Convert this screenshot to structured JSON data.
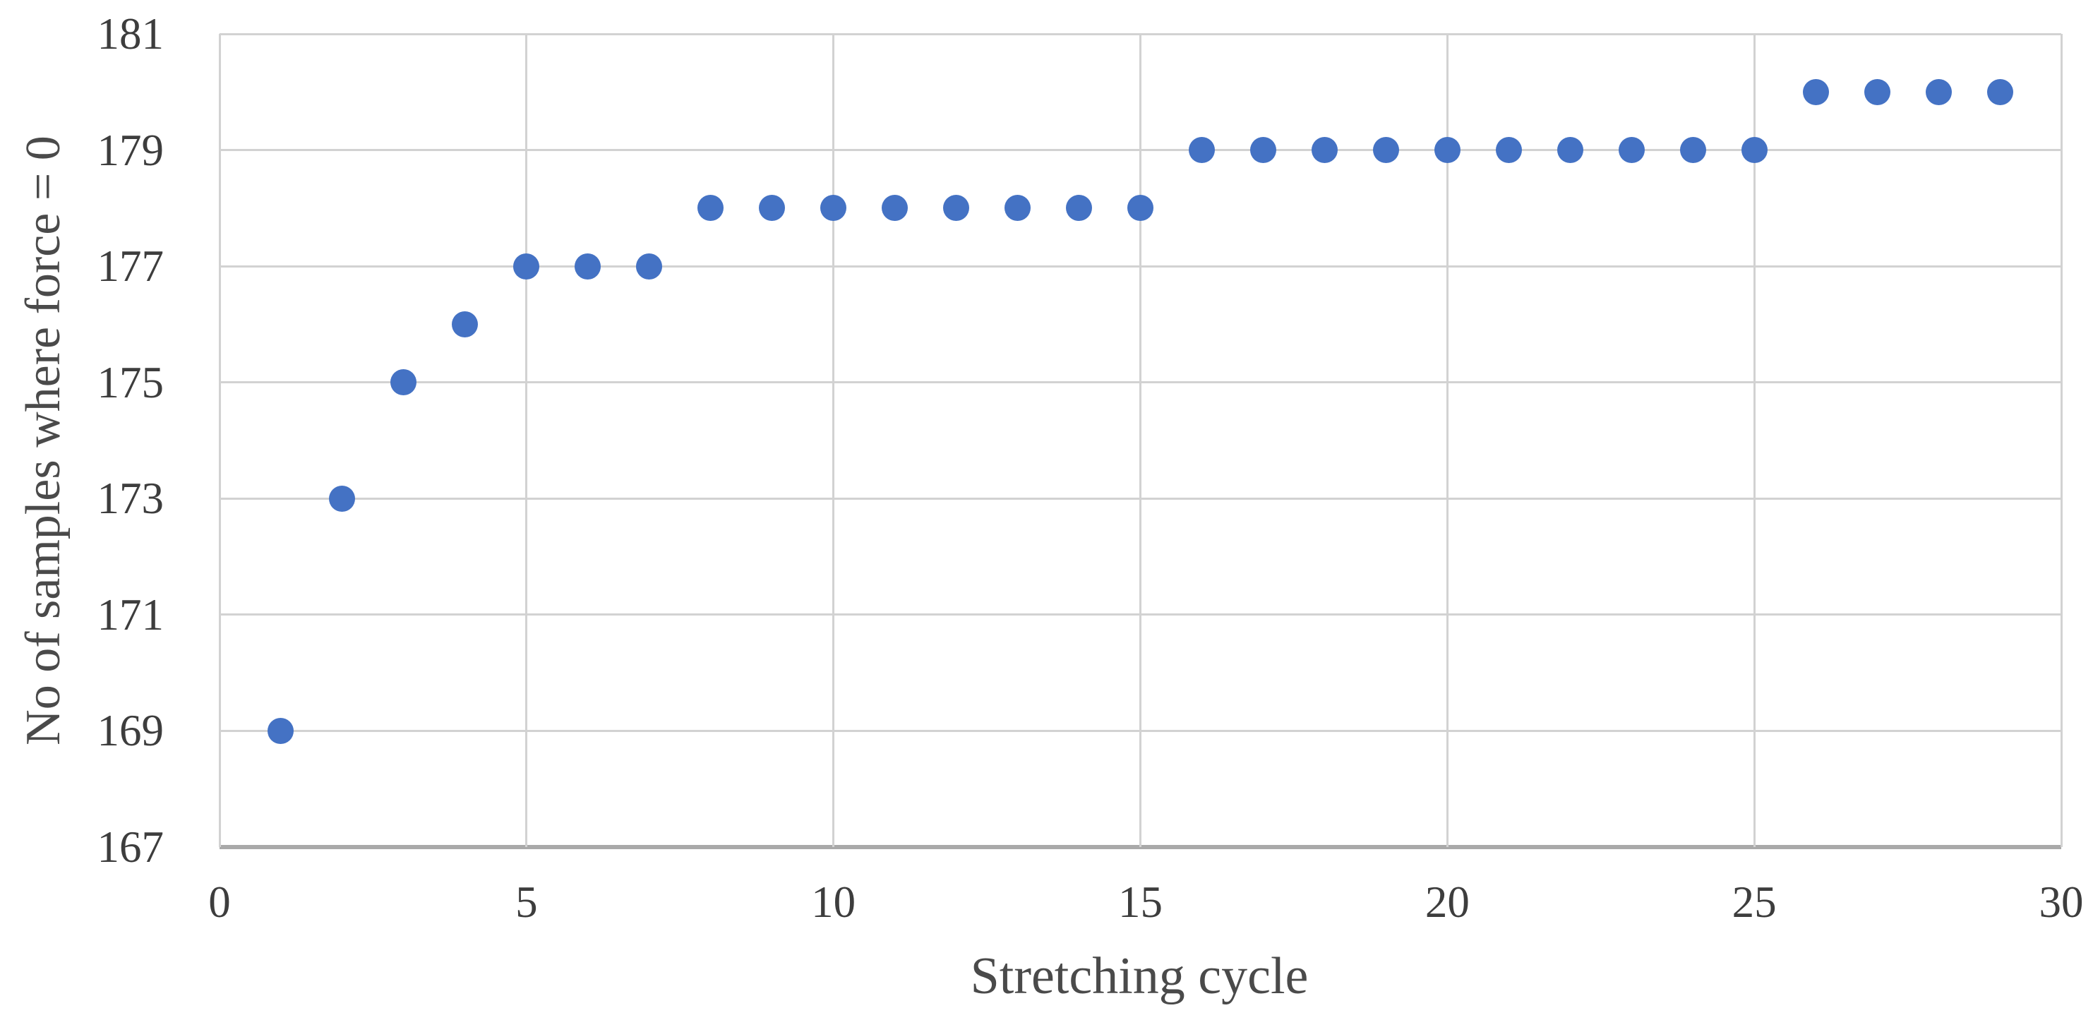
{
  "chart_data": {
    "type": "scatter",
    "title": "",
    "xlabel": "Stretching cycle",
    "ylabel": "No of samples where force = 0",
    "xlim": [
      0,
      30
    ],
    "ylim": [
      167,
      181
    ],
    "x_ticks": [
      0,
      5,
      10,
      15,
      20,
      25,
      30
    ],
    "y_ticks": [
      167,
      169,
      171,
      173,
      175,
      177,
      179,
      181
    ],
    "grid": true,
    "legend": "none",
    "series": [
      {
        "name": "No of samples where force = 0",
        "marker": "circle",
        "marker_color": "#4472C4",
        "points": [
          [
            1,
            169
          ],
          [
            2,
            173
          ],
          [
            3,
            175
          ],
          [
            4,
            176
          ],
          [
            5,
            177
          ],
          [
            6,
            177
          ],
          [
            7,
            177
          ],
          [
            8,
            178
          ],
          [
            9,
            178
          ],
          [
            10,
            178
          ],
          [
            11,
            178
          ],
          [
            12,
            178
          ],
          [
            13,
            178
          ],
          [
            14,
            178
          ],
          [
            15,
            178
          ],
          [
            16,
            179
          ],
          [
            17,
            179
          ],
          [
            18,
            179
          ],
          [
            19,
            179
          ],
          [
            20,
            179
          ],
          [
            21,
            179
          ],
          [
            22,
            179
          ],
          [
            23,
            179
          ],
          [
            24,
            179
          ],
          [
            25,
            179
          ],
          [
            26,
            180
          ],
          [
            27,
            180
          ],
          [
            28,
            180
          ],
          [
            29,
            180
          ]
        ]
      }
    ]
  },
  "colors": {
    "marker": "#4472C4",
    "gridline": "#d2d2d2",
    "axis_line": "#a9a9a9",
    "tick_text": "#3d3d3d",
    "title_text": "#4a4a4a",
    "background": "#ffffff"
  }
}
